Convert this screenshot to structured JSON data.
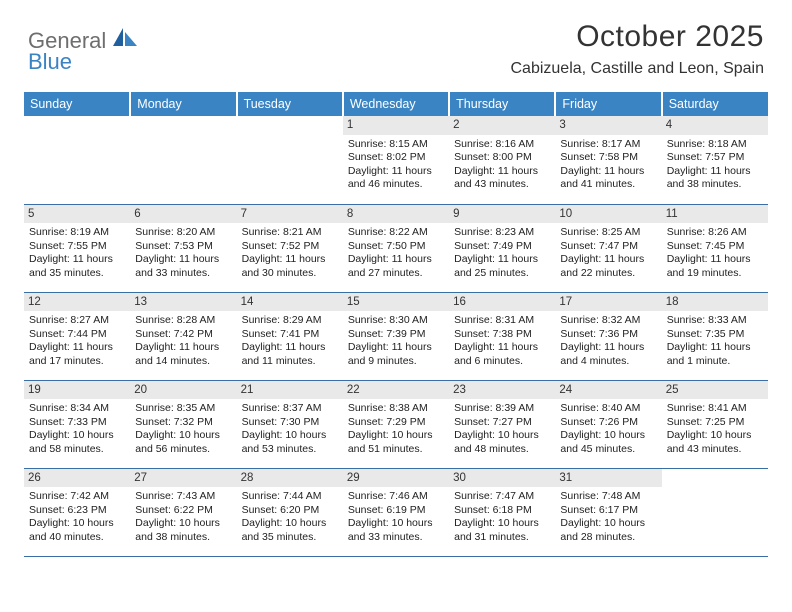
{
  "brand": {
    "general": "General",
    "blue": "Blue"
  },
  "title": "October 2025",
  "location": "Cabizuela, Castille and Leon, Spain",
  "colors": {
    "header_bg": "#3a84c4",
    "header_text": "#ffffff",
    "daynum_bg": "#e9e9e9",
    "row_divider": "#3a6fa5",
    "body_text": "#222222",
    "title_text": "#333333"
  },
  "weekdays": [
    "Sunday",
    "Monday",
    "Tuesday",
    "Wednesday",
    "Thursday",
    "Friday",
    "Saturday"
  ],
  "weeks": [
    [
      {
        "n": "",
        "sr": "",
        "ss": "",
        "dl": ""
      },
      {
        "n": "",
        "sr": "",
        "ss": "",
        "dl": ""
      },
      {
        "n": "",
        "sr": "",
        "ss": "",
        "dl": ""
      },
      {
        "n": "1",
        "sr": "Sunrise: 8:15 AM",
        "ss": "Sunset: 8:02 PM",
        "dl": "Daylight: 11 hours and 46 minutes."
      },
      {
        "n": "2",
        "sr": "Sunrise: 8:16 AM",
        "ss": "Sunset: 8:00 PM",
        "dl": "Daylight: 11 hours and 43 minutes."
      },
      {
        "n": "3",
        "sr": "Sunrise: 8:17 AM",
        "ss": "Sunset: 7:58 PM",
        "dl": "Daylight: 11 hours and 41 minutes."
      },
      {
        "n": "4",
        "sr": "Sunrise: 8:18 AM",
        "ss": "Sunset: 7:57 PM",
        "dl": "Daylight: 11 hours and 38 minutes."
      }
    ],
    [
      {
        "n": "5",
        "sr": "Sunrise: 8:19 AM",
        "ss": "Sunset: 7:55 PM",
        "dl": "Daylight: 11 hours and 35 minutes."
      },
      {
        "n": "6",
        "sr": "Sunrise: 8:20 AM",
        "ss": "Sunset: 7:53 PM",
        "dl": "Daylight: 11 hours and 33 minutes."
      },
      {
        "n": "7",
        "sr": "Sunrise: 8:21 AM",
        "ss": "Sunset: 7:52 PM",
        "dl": "Daylight: 11 hours and 30 minutes."
      },
      {
        "n": "8",
        "sr": "Sunrise: 8:22 AM",
        "ss": "Sunset: 7:50 PM",
        "dl": "Daylight: 11 hours and 27 minutes."
      },
      {
        "n": "9",
        "sr": "Sunrise: 8:23 AM",
        "ss": "Sunset: 7:49 PM",
        "dl": "Daylight: 11 hours and 25 minutes."
      },
      {
        "n": "10",
        "sr": "Sunrise: 8:25 AM",
        "ss": "Sunset: 7:47 PM",
        "dl": "Daylight: 11 hours and 22 minutes."
      },
      {
        "n": "11",
        "sr": "Sunrise: 8:26 AM",
        "ss": "Sunset: 7:45 PM",
        "dl": "Daylight: 11 hours and 19 minutes."
      }
    ],
    [
      {
        "n": "12",
        "sr": "Sunrise: 8:27 AM",
        "ss": "Sunset: 7:44 PM",
        "dl": "Daylight: 11 hours and 17 minutes."
      },
      {
        "n": "13",
        "sr": "Sunrise: 8:28 AM",
        "ss": "Sunset: 7:42 PM",
        "dl": "Daylight: 11 hours and 14 minutes."
      },
      {
        "n": "14",
        "sr": "Sunrise: 8:29 AM",
        "ss": "Sunset: 7:41 PM",
        "dl": "Daylight: 11 hours and 11 minutes."
      },
      {
        "n": "15",
        "sr": "Sunrise: 8:30 AM",
        "ss": "Sunset: 7:39 PM",
        "dl": "Daylight: 11 hours and 9 minutes."
      },
      {
        "n": "16",
        "sr": "Sunrise: 8:31 AM",
        "ss": "Sunset: 7:38 PM",
        "dl": "Daylight: 11 hours and 6 minutes."
      },
      {
        "n": "17",
        "sr": "Sunrise: 8:32 AM",
        "ss": "Sunset: 7:36 PM",
        "dl": "Daylight: 11 hours and 4 minutes."
      },
      {
        "n": "18",
        "sr": "Sunrise: 8:33 AM",
        "ss": "Sunset: 7:35 PM",
        "dl": "Daylight: 11 hours and 1 minute."
      }
    ],
    [
      {
        "n": "19",
        "sr": "Sunrise: 8:34 AM",
        "ss": "Sunset: 7:33 PM",
        "dl": "Daylight: 10 hours and 58 minutes."
      },
      {
        "n": "20",
        "sr": "Sunrise: 8:35 AM",
        "ss": "Sunset: 7:32 PM",
        "dl": "Daylight: 10 hours and 56 minutes."
      },
      {
        "n": "21",
        "sr": "Sunrise: 8:37 AM",
        "ss": "Sunset: 7:30 PM",
        "dl": "Daylight: 10 hours and 53 minutes."
      },
      {
        "n": "22",
        "sr": "Sunrise: 8:38 AM",
        "ss": "Sunset: 7:29 PM",
        "dl": "Daylight: 10 hours and 51 minutes."
      },
      {
        "n": "23",
        "sr": "Sunrise: 8:39 AM",
        "ss": "Sunset: 7:27 PM",
        "dl": "Daylight: 10 hours and 48 minutes."
      },
      {
        "n": "24",
        "sr": "Sunrise: 8:40 AM",
        "ss": "Sunset: 7:26 PM",
        "dl": "Daylight: 10 hours and 45 minutes."
      },
      {
        "n": "25",
        "sr": "Sunrise: 8:41 AM",
        "ss": "Sunset: 7:25 PM",
        "dl": "Daylight: 10 hours and 43 minutes."
      }
    ],
    [
      {
        "n": "26",
        "sr": "Sunrise: 7:42 AM",
        "ss": "Sunset: 6:23 PM",
        "dl": "Daylight: 10 hours and 40 minutes."
      },
      {
        "n": "27",
        "sr": "Sunrise: 7:43 AM",
        "ss": "Sunset: 6:22 PM",
        "dl": "Daylight: 10 hours and 38 minutes."
      },
      {
        "n": "28",
        "sr": "Sunrise: 7:44 AM",
        "ss": "Sunset: 6:20 PM",
        "dl": "Daylight: 10 hours and 35 minutes."
      },
      {
        "n": "29",
        "sr": "Sunrise: 7:46 AM",
        "ss": "Sunset: 6:19 PM",
        "dl": "Daylight: 10 hours and 33 minutes."
      },
      {
        "n": "30",
        "sr": "Sunrise: 7:47 AM",
        "ss": "Sunset: 6:18 PM",
        "dl": "Daylight: 10 hours and 31 minutes."
      },
      {
        "n": "31",
        "sr": "Sunrise: 7:48 AM",
        "ss": "Sunset: 6:17 PM",
        "dl": "Daylight: 10 hours and 28 minutes."
      },
      {
        "n": "",
        "sr": "",
        "ss": "",
        "dl": ""
      }
    ]
  ]
}
